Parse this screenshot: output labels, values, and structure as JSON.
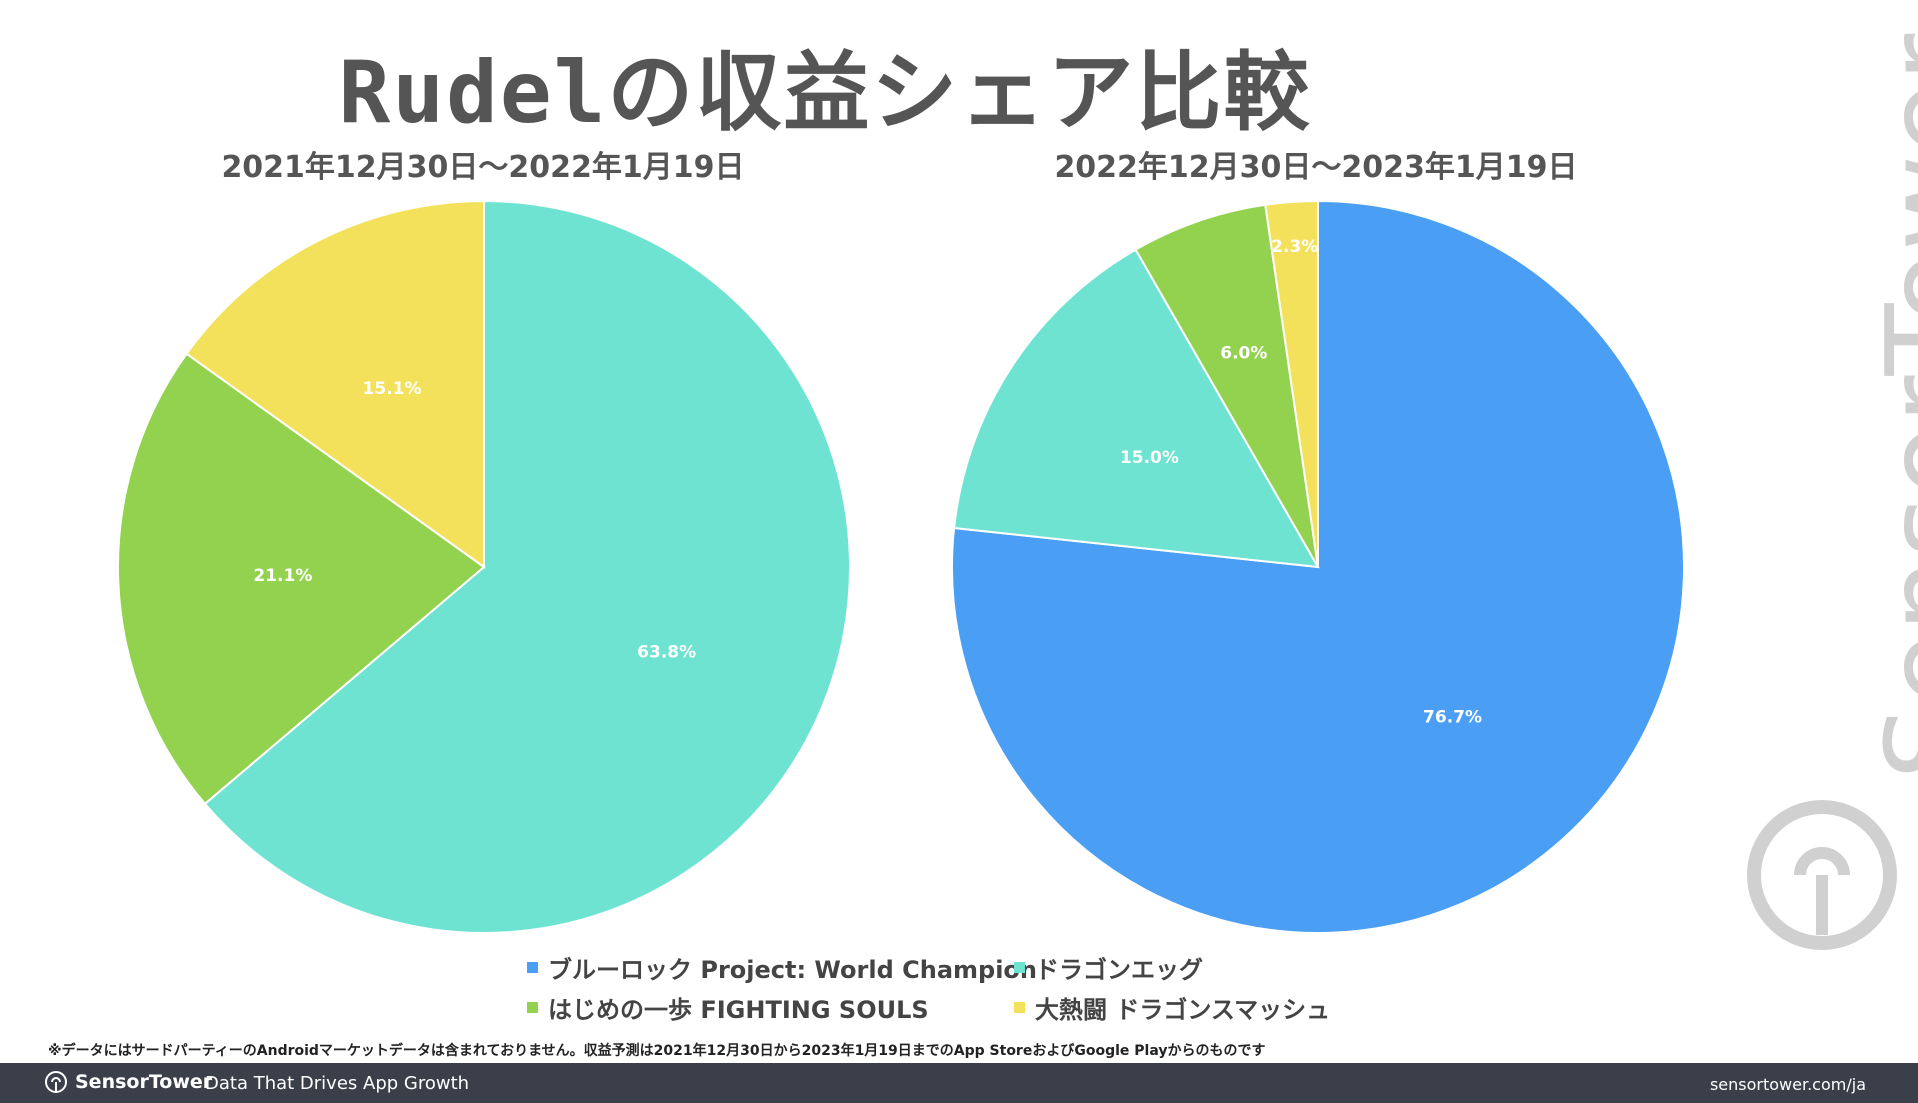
{
  "header": {
    "title": "Rudelの収益シェア比較"
  },
  "chart_data": [
    {
      "type": "pie",
      "title": "2021年12月30日～2022年1月19日",
      "slices": [
        {
          "name": "ドラゴンエッグ",
          "value": 63.8,
          "label": "63.8%",
          "color": "#6ee3d2"
        },
        {
          "name": "はじめの一歩 FIGHTING SOULS",
          "value": 21.1,
          "label": "21.1%",
          "color": "#93d24f"
        },
        {
          "name": "大熱闘 ドラゴンスマッシュ",
          "value": 15.1,
          "label": "15.1%",
          "color": "#f4e15b"
        }
      ]
    },
    {
      "type": "pie",
      "title": "2022年12月30日～2023年1月19日",
      "slices": [
        {
          "name": "ブルーロック Project: World Champion",
          "value": 76.7,
          "label": "76.7%",
          "color": "#4a9ff5"
        },
        {
          "name": "ドラゴンエッグ",
          "value": 15.0,
          "label": "15.0%",
          "color": "#6ee3d2"
        },
        {
          "name": "はじめの一歩 FIGHTING SOULS",
          "value": 6.0,
          "label": "6.0%",
          "color": "#93d24f"
        },
        {
          "name": "大熱闘 ドラゴンスマッシュ",
          "value": 2.3,
          "label": "2.3%",
          "color": "#f4e15b"
        }
      ]
    }
  ],
  "legend": [
    {
      "label": "ブルーロック Project: World Champion",
      "color": "#4a9ff5"
    },
    {
      "label": "ドラゴンエッグ",
      "color": "#6ee3d2"
    },
    {
      "label": "はじめの一歩 FIGHTING SOULS",
      "color": "#93d24f"
    },
    {
      "label": "大熱闘 ドラゴンスマッシュ",
      "color": "#f4e15b"
    }
  ],
  "footnote": "※データにはサードパーティーのAndroidマーケットデータは含まれておりません。収益予測は2021年12月30日から2023年1月19日までのApp StoreおよびGoogle Playからのものです",
  "footer": {
    "brand": "SensorTower",
    "tagline": "Data That Drives App Growth",
    "site": "sensortower.com/ja",
    "background": "#3a3f4a"
  },
  "watermark": {
    "text": "SensorTower"
  }
}
